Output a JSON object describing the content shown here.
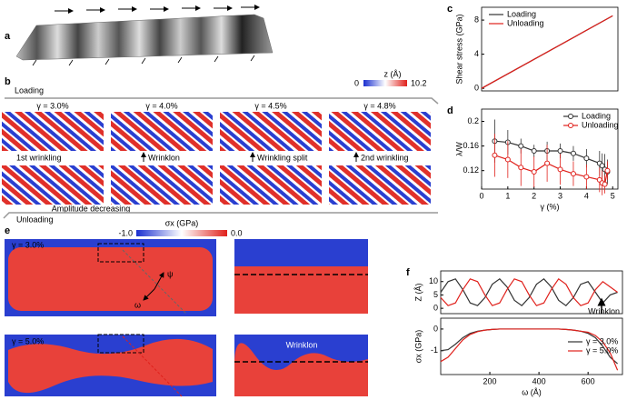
{
  "panel_a": {
    "label": "a"
  },
  "panel_b": {
    "label": "b",
    "loading": "Loading",
    "colorbar_label": "z (Å)",
    "colorbar_ticks": [
      "0",
      "10.2"
    ],
    "strains": [
      "γ = 3.0%",
      "γ = 4.0%",
      "γ = 4.5%",
      "γ = 4.8%"
    ],
    "annotations": [
      "1st wrinkling",
      "Wrinklon",
      "Wrinkling split",
      "2nd wrinkling"
    ],
    "amplitude": "Amplitude decreasing",
    "unloading": "Unloading"
  },
  "panel_e": {
    "label": "e",
    "colorbar_label": "σx (GPa)",
    "colorbar_ticks": [
      "-1.0",
      "0.0"
    ],
    "strains": [
      "γ = 3.0%",
      "γ = 5.0%"
    ],
    "psi": "ψ",
    "omega": "ω",
    "wrinklon": "Wrinklon"
  },
  "chart_data": [
    {
      "type": "line",
      "label": "c",
      "ylabel": "Shear stress (GPa)",
      "x": [
        0,
        5
      ],
      "xlim": [
        0,
        5.2
      ],
      "ylim": [
        -0.3,
        9.5
      ],
      "yticks": [
        0,
        4,
        8
      ],
      "legend": "upper left",
      "series": [
        {
          "name": "Loading",
          "color": "#333333",
          "values": [
            0,
            8.5
          ]
        },
        {
          "name": "Unloading",
          "color": "#e0201b",
          "values": [
            0,
            8.5
          ]
        }
      ]
    },
    {
      "type": "line",
      "label": "d",
      "ylabel": "λ/W",
      "xlabel": "γ (%)",
      "x": [
        0.5,
        1,
        1.5,
        2,
        2.5,
        3,
        3.5,
        4,
        4.5,
        4.6,
        4.7,
        4.8
      ],
      "xlim": [
        0,
        5.2
      ],
      "xticks": [
        0,
        1,
        2,
        3,
        4,
        5
      ],
      "ylim": [
        0.09,
        0.22
      ],
      "yticks": [
        0.12,
        0.16,
        0.2
      ],
      "markers": true,
      "legend": "upper right",
      "series": [
        {
          "name": "Loading",
          "color": "#333333",
          "values": [
            0.168,
            0.166,
            0.16,
            0.152,
            0.152,
            0.152,
            0.148,
            0.14,
            0.132,
            0.128,
            0.122,
            0.118
          ],
          "errors": [
            0.035,
            0.02,
            0.012,
            0.01,
            0.015,
            0.012,
            0.012,
            0.015,
            0.02,
            0.02,
            0.025,
            0.02
          ]
        },
        {
          "name": "Unloading",
          "color": "#e0201b",
          "values": [
            0.145,
            0.138,
            0.125,
            0.118,
            0.132,
            0.122,
            0.115,
            0.11,
            0.105,
            0.1,
            0.098,
            0.12
          ],
          "errors": [
            0.035,
            0.03,
            0.03,
            0.025,
            0.03,
            0.025,
            0.02,
            0.02,
            0.02,
            0.02,
            0.015,
            0.015
          ]
        }
      ]
    },
    {
      "type": "line",
      "label": "f",
      "ylabel": "Z (Å)",
      "annotation": "Wrinklon",
      "x": [
        0,
        30,
        60,
        90,
        120,
        150,
        180,
        210,
        240,
        270,
        300,
        330,
        360,
        390,
        420,
        450,
        480,
        510,
        540,
        570,
        600,
        630,
        660,
        690,
        720
      ],
      "xlim": [
        0,
        740
      ],
      "ylim": [
        -2,
        14
      ],
      "yticks": [
        0,
        5,
        10
      ],
      "series": [
        {
          "color": "#333333",
          "values": [
            6,
            10,
            11,
            7,
            2,
            1,
            4,
            9,
            11,
            8,
            3,
            1,
            4,
            9,
            11,
            8,
            3,
            1,
            4,
            9,
            10,
            6,
            2,
            5,
            6
          ]
        },
        {
          "color": "#e0201b",
          "values": [
            4,
            1,
            2,
            7,
            11,
            10,
            5,
            1,
            2,
            7,
            11,
            10,
            5,
            1,
            2,
            7,
            11,
            9,
            4,
            1,
            2,
            7,
            10,
            8,
            6
          ]
        }
      ]
    },
    {
      "type": "line",
      "ylabel": "σx (GPa)",
      "xlabel": "ω (Å)",
      "x": [
        0,
        30,
        60,
        90,
        120,
        150,
        180,
        210,
        240,
        270,
        300,
        330,
        360,
        390,
        420,
        450,
        480,
        510,
        540,
        570,
        600,
        630,
        660,
        690,
        720
      ],
      "xlim": [
        0,
        740
      ],
      "xticks": [
        200,
        400,
        600
      ],
      "ylim": [
        -2.1,
        0.5
      ],
      "yticks": [
        -1,
        0
      ],
      "legend": "center right",
      "series": [
        {
          "name": "γ = 3.0%",
          "color": "#333333",
          "values": [
            -1.0,
            -0.95,
            -0.7,
            -0.4,
            -0.2,
            -0.1,
            -0.05,
            -0.02,
            0,
            0,
            0,
            0,
            0,
            0,
            0,
            0,
            0,
            -0.02,
            -0.05,
            -0.1,
            -0.2,
            -0.4,
            -0.8,
            -1.3,
            -1.6
          ]
        },
        {
          "name": "γ = 5.0%",
          "color": "#e0201b",
          "values": [
            -1.5,
            -1.3,
            -0.9,
            -0.5,
            -0.25,
            -0.12,
            -0.05,
            -0.02,
            0,
            0,
            0,
            0,
            0,
            0,
            0,
            0,
            0,
            -0.02,
            -0.05,
            -0.1,
            -0.15,
            -0.3,
            -0.6,
            -1.1,
            -1.9
          ]
        }
      ]
    }
  ]
}
